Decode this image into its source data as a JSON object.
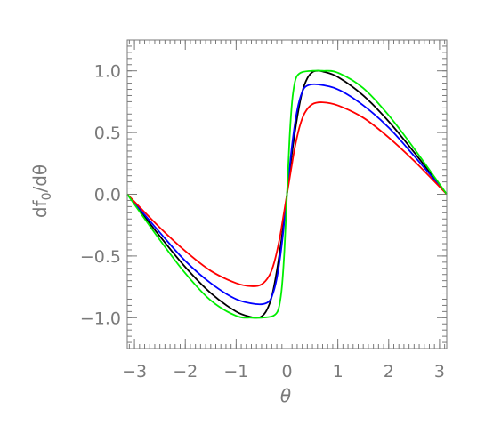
{
  "chart_data": {
    "type": "line",
    "title": "",
    "xlabel": "θ",
    "ylabel": "df",
    "ylabel_sub": "0",
    "ylabel_suffix": "/dθ",
    "xlim": [
      -3.14159,
      3.14159
    ],
    "ylim": [
      -1.25,
      1.25
    ],
    "x_ticks": [
      -3,
      -2,
      -1,
      0,
      1,
      2,
      3
    ],
    "x_tick_labels": [
      "−3",
      "−2",
      "−1",
      "0",
      "1",
      "2",
      "3"
    ],
    "y_ticks": [
      -1.0,
      -0.5,
      0.0,
      0.5,
      1.0
    ],
    "y_tick_labels": [
      "−1.0",
      "−0.5",
      "0.0",
      "0.5",
      "1.0"
    ],
    "grid": false,
    "legend": "none",
    "colors": {
      "axis": "#7a7a7a"
    },
    "series": [
      {
        "color": "#000000",
        "x": [
          -3.14159,
          -2.5,
          -2.0,
          -1.5,
          -1.0,
          -0.7,
          -0.6,
          -0.5,
          -0.4,
          -0.3,
          -0.2,
          -0.1,
          0.0,
          0.1,
          0.2,
          0.3,
          0.4,
          0.5,
          0.6,
          0.7,
          1.0,
          1.5,
          2.0,
          2.5,
          3.14159
        ],
        "y": [
          0.0,
          -0.34,
          -0.59,
          -0.8,
          -0.95,
          -0.995,
          -1.0,
          -0.99,
          -0.94,
          -0.83,
          -0.62,
          -0.34,
          0.0,
          0.34,
          0.62,
          0.83,
          0.94,
          0.99,
          1.0,
          0.995,
          0.95,
          0.8,
          0.59,
          0.34,
          0.0
        ]
      },
      {
        "color": "#0000ff",
        "x": [
          -3.14159,
          -2.5,
          -2.0,
          -1.5,
          -1.0,
          -0.6,
          -0.4,
          -0.3,
          -0.2,
          -0.1,
          0.0,
          0.1,
          0.2,
          0.3,
          0.4,
          0.6,
          1.0,
          1.5,
          2.0,
          2.5,
          3.14159
        ],
        "y": [
          0.0,
          -0.31,
          -0.54,
          -0.72,
          -0.85,
          -0.89,
          -0.88,
          -0.83,
          -0.68,
          -0.4,
          0.0,
          0.4,
          0.68,
          0.83,
          0.88,
          0.89,
          0.85,
          0.72,
          0.54,
          0.31,
          0.0
        ]
      },
      {
        "color": "#ff0000",
        "x": [
          -3.14159,
          -2.5,
          -2.0,
          -1.5,
          -1.0,
          -0.7,
          -0.5,
          -0.35,
          -0.25,
          -0.15,
          -0.08,
          0.0,
          0.08,
          0.15,
          0.25,
          0.35,
          0.5,
          0.7,
          1.0,
          1.5,
          2.0,
          2.5,
          3.14159
        ],
        "y": [
          0.0,
          -0.27,
          -0.46,
          -0.62,
          -0.72,
          -0.745,
          -0.73,
          -0.66,
          -0.55,
          -0.37,
          -0.2,
          0.0,
          0.2,
          0.37,
          0.55,
          0.66,
          0.73,
          0.745,
          0.72,
          0.62,
          0.46,
          0.27,
          0.0
        ]
      },
      {
        "color": "#00ee00",
        "x": [
          -3.14159,
          -2.5,
          -2.0,
          -1.5,
          -1.0,
          -0.7,
          -0.5,
          -0.3,
          -0.2,
          -0.15,
          -0.1,
          -0.05,
          0.0,
          0.05,
          0.1,
          0.15,
          0.2,
          0.3,
          0.5,
          0.7,
          1.0,
          1.5,
          2.0,
          2.5,
          3.14159
        ],
        "y": [
          0.0,
          -0.37,
          -0.64,
          -0.86,
          -0.985,
          -1.0,
          -1.0,
          -0.99,
          -0.96,
          -0.9,
          -0.75,
          -0.45,
          0.0,
          0.45,
          0.75,
          0.9,
          0.96,
          0.99,
          1.0,
          1.0,
          0.985,
          0.86,
          0.64,
          0.37,
          0.0
        ]
      }
    ]
  }
}
